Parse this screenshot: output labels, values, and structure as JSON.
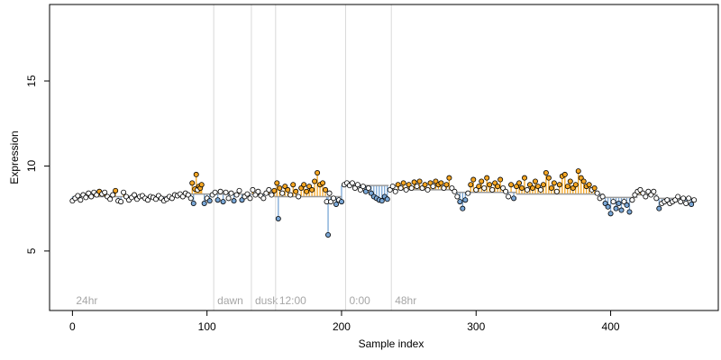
{
  "chart_data": {
    "type": "scatter",
    "xlabel": "Sample index",
    "ylabel": "Expression",
    "xlim": [
      -17,
      480
    ],
    "ylim": [
      1.5,
      19.5
    ],
    "x_ticks": [
      0,
      100,
      200,
      300,
      400
    ],
    "y_ticks": [
      5,
      10,
      15
    ],
    "grid": false,
    "baseline_segments": [
      {
        "x_start": 0,
        "x_end": 88,
        "y": 8.2
      },
      {
        "x_start": 88,
        "x_end": 150,
        "y": 8.35
      },
      {
        "x_start": 150,
        "x_end": 200,
        "y": 8.2
      },
      {
        "x_start": 200,
        "x_end": 235,
        "y": 8.85
      },
      {
        "x_start": 235,
        "x_end": 285,
        "y": 8.6
      },
      {
        "x_start": 285,
        "x_end": 330,
        "y": 8.45
      },
      {
        "x_start": 330,
        "x_end": 395,
        "y": 8.35
      },
      {
        "x_start": 395,
        "x_end": 420,
        "y": 8.15
      },
      {
        "x_start": 420,
        "x_end": 435,
        "y": 8.3
      },
      {
        "x_start": 435,
        "x_end": 462,
        "y": 8.1
      }
    ],
    "markers": [
      {
        "x": 0,
        "label": "24hr"
      },
      {
        "x": 105,
        "label": "dawn"
      },
      {
        "x": 133,
        "label": "dusk"
      },
      {
        "x": 151,
        "label": "12:00"
      },
      {
        "x": 203,
        "label": "0:00"
      },
      {
        "x": 237,
        "label": "48hr"
      }
    ],
    "colors": {
      "above": "#f5a623",
      "below": "#7aa7d6",
      "neutral": "#ffffff",
      "marker_line": "#d9d9d9",
      "marker_text": "#a6a6a6",
      "baseline": "#9a9a9a"
    },
    "points": [
      [
        0,
        7.95
      ],
      [
        2,
        8.1
      ],
      [
        4,
        8.25
      ],
      [
        6,
        8.0
      ],
      [
        8,
        8.3
      ],
      [
        10,
        8.15
      ],
      [
        12,
        8.4
      ],
      [
        14,
        8.2
      ],
      [
        16,
        8.45
      ],
      [
        18,
        8.3
      ],
      [
        20,
        8.5
      ],
      [
        22,
        8.35
      ],
      [
        24,
        8.45
      ],
      [
        26,
        8.2
      ],
      [
        28,
        8.05
      ],
      [
        30,
        8.3
      ],
      [
        32,
        8.55
      ],
      [
        34,
        7.95
      ],
      [
        36,
        7.9
      ],
      [
        38,
        8.45
      ],
      [
        40,
        8.2
      ],
      [
        42,
        8.0
      ],
      [
        44,
        8.15
      ],
      [
        46,
        8.3
      ],
      [
        48,
        8.05
      ],
      [
        50,
        8.2
      ],
      [
        52,
        8.25
      ],
      [
        54,
        8.1
      ],
      [
        56,
        8.0
      ],
      [
        58,
        8.2
      ],
      [
        60,
        8.15
      ],
      [
        62,
        8.05
      ],
      [
        64,
        8.25
      ],
      [
        66,
        8.1
      ],
      [
        68,
        7.95
      ],
      [
        70,
        8.05
      ],
      [
        72,
        8.2
      ],
      [
        74,
        8.1
      ],
      [
        76,
        8.3
      ],
      [
        78,
        8.25
      ],
      [
        80,
        8.35
      ],
      [
        82,
        8.2
      ],
      [
        84,
        8.4
      ],
      [
        86,
        8.3
      ],
      [
        88,
        8.1
      ],
      [
        89,
        9.0
      ],
      [
        90,
        7.8
      ],
      [
        91,
        8.65
      ],
      [
        92,
        9.5
      ],
      [
        93,
        8.6
      ],
      [
        94,
        8.8
      ],
      [
        95,
        8.7
      ],
      [
        96,
        8.9
      ],
      [
        98,
        7.8
      ],
      [
        100,
        8.1
      ],
      [
        102,
        7.95
      ],
      [
        104,
        8.3
      ],
      [
        106,
        8.45
      ],
      [
        108,
        8.0
      ],
      [
        110,
        8.5
      ],
      [
        112,
        7.9
      ],
      [
        114,
        8.45
      ],
      [
        116,
        8.1
      ],
      [
        118,
        8.4
      ],
      [
        120,
        7.95
      ],
      [
        122,
        8.3
      ],
      [
        124,
        8.55
      ],
      [
        126,
        8.0
      ],
      [
        128,
        8.2
      ],
      [
        130,
        8.35
      ],
      [
        132,
        8.1
      ],
      [
        134,
        8.6
      ],
      [
        136,
        8.3
      ],
      [
        138,
        8.5
      ],
      [
        140,
        8.25
      ],
      [
        142,
        8.1
      ],
      [
        144,
        8.4
      ],
      [
        146,
        8.6
      ],
      [
        148,
        8.3
      ],
      [
        150,
        8.55
      ],
      [
        152,
        9.0
      ],
      [
        153,
        6.9
      ],
      [
        154,
        8.7
      ],
      [
        156,
        8.4
      ],
      [
        158,
        8.8
      ],
      [
        160,
        8.6
      ],
      [
        162,
        8.3
      ],
      [
        164,
        8.9
      ],
      [
        166,
        8.5
      ],
      [
        168,
        8.2
      ],
      [
        170,
        8.7
      ],
      [
        172,
        8.9
      ],
      [
        174,
        8.5
      ],
      [
        176,
        8.8
      ],
      [
        178,
        8.6
      ],
      [
        180,
        9.1
      ],
      [
        182,
        9.6
      ],
      [
        184,
        8.9
      ],
      [
        186,
        9.0
      ],
      [
        188,
        8.6
      ],
      [
        189,
        7.9
      ],
      [
        190,
        5.95
      ],
      [
        191,
        8.4
      ],
      [
        192,
        7.9
      ],
      [
        194,
        8.1
      ],
      [
        196,
        7.75
      ],
      [
        198,
        8.0
      ],
      [
        200,
        7.9
      ],
      [
        202,
        8.9
      ],
      [
        204,
        9.0
      ],
      [
        206,
        8.85
      ],
      [
        208,
        9.0
      ],
      [
        210,
        8.7
      ],
      [
        212,
        8.9
      ],
      [
        214,
        8.6
      ],
      [
        216,
        8.8
      ],
      [
        218,
        8.5
      ],
      [
        220,
        8.7
      ],
      [
        222,
        8.4
      ],
      [
        224,
        8.2
      ],
      [
        226,
        8.1
      ],
      [
        228,
        8.0
      ],
      [
        230,
        7.95
      ],
      [
        232,
        8.2
      ],
      [
        234,
        8.05
      ],
      [
        236,
        8.6
      ],
      [
        238,
        8.8
      ],
      [
        240,
        8.5
      ],
      [
        242,
        8.9
      ],
      [
        244,
        8.7
      ],
      [
        246,
        9.0
      ],
      [
        248,
        8.6
      ],
      [
        250,
        8.9
      ],
      [
        252,
        8.7
      ],
      [
        254,
        9.05
      ],
      [
        256,
        8.8
      ],
      [
        258,
        9.1
      ],
      [
        260,
        8.7
      ],
      [
        262,
        8.9
      ],
      [
        264,
        8.6
      ],
      [
        266,
        9.0
      ],
      [
        268,
        8.8
      ],
      [
        270,
        9.1
      ],
      [
        272,
        8.9
      ],
      [
        274,
        9.0
      ],
      [
        276,
        8.7
      ],
      [
        278,
        8.9
      ],
      [
        280,
        9.3
      ],
      [
        282,
        8.7
      ],
      [
        284,
        8.5
      ],
      [
        286,
        8.2
      ],
      [
        288,
        7.9
      ],
      [
        290,
        7.5
      ],
      [
        292,
        8.0
      ],
      [
        294,
        8.4
      ],
      [
        296,
        8.9
      ],
      [
        298,
        9.2
      ],
      [
        300,
        8.6
      ],
      [
        302,
        8.8
      ],
      [
        304,
        9.1
      ],
      [
        306,
        8.7
      ],
      [
        308,
        9.3
      ],
      [
        310,
        8.9
      ],
      [
        312,
        8.6
      ],
      [
        314,
        9.0
      ],
      [
        316,
        8.8
      ],
      [
        318,
        9.2
      ],
      [
        320,
        8.7
      ],
      [
        322,
        8.5
      ],
      [
        324,
        8.2
      ],
      [
        326,
        8.9
      ],
      [
        328,
        8.1
      ],
      [
        330,
        8.8
      ],
      [
        332,
        9.0
      ],
      [
        334,
        8.7
      ],
      [
        336,
        9.3
      ],
      [
        338,
        8.6
      ],
      [
        340,
        8.9
      ],
      [
        342,
        8.7
      ],
      [
        344,
        9.1
      ],
      [
        346,
        8.8
      ],
      [
        348,
        8.6
      ],
      [
        350,
        8.9
      ],
      [
        352,
        9.6
      ],
      [
        354,
        9.3
      ],
      [
        356,
        8.7
      ],
      [
        358,
        9.0
      ],
      [
        360,
        8.5
      ],
      [
        362,
        8.9
      ],
      [
        364,
        9.4
      ],
      [
        366,
        9.5
      ],
      [
        368,
        8.8
      ],
      [
        370,
        9.1
      ],
      [
        372,
        8.7
      ],
      [
        374,
        8.9
      ],
      [
        376,
        9.7
      ],
      [
        378,
        9.3
      ],
      [
        380,
        9.1
      ],
      [
        382,
        8.8
      ],
      [
        384,
        8.9
      ],
      [
        386,
        8.6
      ],
      [
        388,
        8.7
      ],
      [
        390,
        8.4
      ],
      [
        392,
        8.1
      ],
      [
        394,
        8.2
      ],
      [
        396,
        7.8
      ],
      [
        398,
        7.6
      ],
      [
        400,
        7.2
      ],
      [
        402,
        7.9
      ],
      [
        404,
        7.5
      ],
      [
        406,
        7.8
      ],
      [
        408,
        7.4
      ],
      [
        410,
        7.9
      ],
      [
        412,
        7.7
      ],
      [
        414,
        7.3
      ],
      [
        416,
        8.0
      ],
      [
        418,
        8.3
      ],
      [
        420,
        8.5
      ],
      [
        422,
        8.6
      ],
      [
        424,
        8.4
      ],
      [
        426,
        8.2
      ],
      [
        428,
        8.5
      ],
      [
        430,
        8.3
      ],
      [
        432,
        8.5
      ],
      [
        434,
        8.1
      ],
      [
        436,
        7.5
      ],
      [
        438,
        7.8
      ],
      [
        440,
        7.9
      ],
      [
        442,
        8.0
      ],
      [
        444,
        7.8
      ],
      [
        446,
        7.9
      ],
      [
        448,
        8.0
      ],
      [
        450,
        8.2
      ],
      [
        452,
        7.9
      ],
      [
        454,
        8.1
      ],
      [
        456,
        7.8
      ],
      [
        458,
        8.1
      ],
      [
        460,
        7.75
      ],
      [
        462,
        8.0
      ]
    ]
  }
}
